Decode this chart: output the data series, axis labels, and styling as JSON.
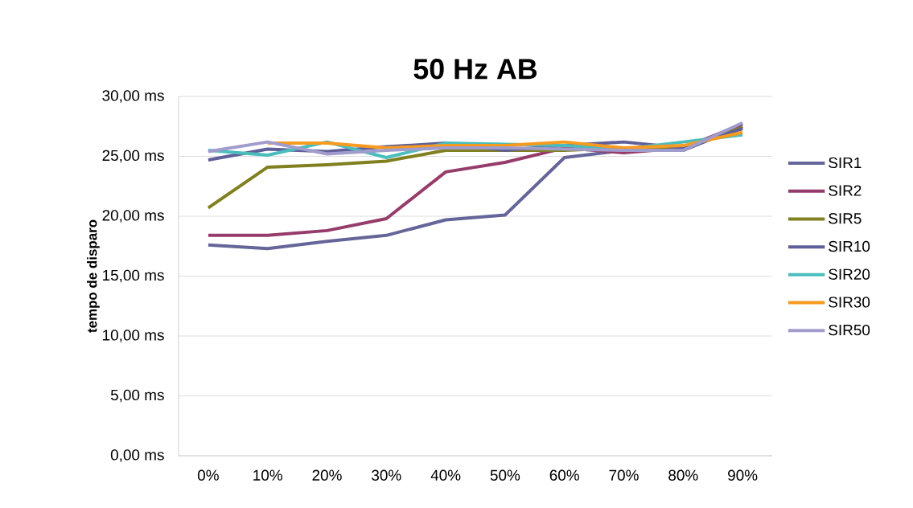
{
  "chart_data": {
    "type": "line",
    "title": "50 Hz AB",
    "ylabel": "tempo de disparo",
    "categories": [
      "0%",
      "10%",
      "20%",
      "30%",
      "40%",
      "50%",
      "60%",
      "70%",
      "80%",
      "90%"
    ],
    "series": [
      {
        "name": "SIR1",
        "color": "#65659a",
        "values": [
          17.6,
          17.3,
          17.9,
          18.4,
          19.7,
          20.1,
          24.9,
          25.5,
          25.5,
          27.5
        ]
      },
      {
        "name": "SIR2",
        "color": "#963c6a",
        "values": [
          18.4,
          18.4,
          18.8,
          19.8,
          23.7,
          24.5,
          25.7,
          25.3,
          25.7,
          27.7
        ]
      },
      {
        "name": "SIR5",
        "color": "#808020",
        "values": [
          20.7,
          24.1,
          24.3,
          24.6,
          25.5,
          25.5,
          25.5,
          25.7,
          25.7,
          27.4
        ]
      },
      {
        "name": "SIR10",
        "color": "#5f5f99",
        "values": [
          24.7,
          25.6,
          25.4,
          25.8,
          26.1,
          25.5,
          25.9,
          26.2,
          25.7,
          27.3
        ]
      },
      {
        "name": "SIR20",
        "color": "#4bbdbd",
        "values": [
          25.5,
          25.1,
          26.2,
          24.9,
          26.1,
          26.0,
          25.9,
          25.6,
          26.2,
          26.8
        ]
      },
      {
        "name": "SIR30",
        "color": "#f79a20",
        "values": [
          null,
          26.1,
          26.1,
          25.7,
          25.9,
          25.9,
          26.2,
          25.7,
          25.9,
          27.0
        ]
      },
      {
        "name": "SIR50",
        "color": "#a09ccc",
        "values": [
          25.4,
          26.2,
          25.2,
          25.5,
          25.7,
          25.7,
          25.6,
          25.5,
          25.5,
          27.8
        ]
      }
    ],
    "ylim": [
      0,
      30
    ],
    "yticks": [
      {
        "value": 0,
        "label": "0,00 ms"
      },
      {
        "value": 5,
        "label": "5,00 ms"
      },
      {
        "value": 10,
        "label": "10,00 ms"
      },
      {
        "value": 15,
        "label": "15,00 ms"
      },
      {
        "value": 20,
        "label": "20,00 ms"
      },
      {
        "value": 25,
        "label": "25,00 ms"
      },
      {
        "value": 30,
        "label": "30,00 ms"
      }
    ],
    "grid": "y",
    "legend": "right",
    "marker": "none",
    "line_style": "solid"
  }
}
